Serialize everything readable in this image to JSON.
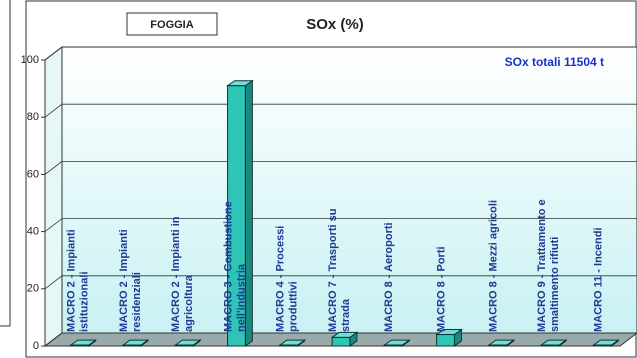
{
  "chart_data": {
    "type": "bar3d",
    "label": "FOGGIA",
    "title": "SOx (%)",
    "annotation": "SOx totali 11504  t",
    "categories": [
      "MACRO 2 - Impianti istituzionali",
      "MACRO 2 - Impianti residenziali",
      "MACRO 2 - Impianti in agricoltura",
      "MACRO 3 - Combustione nell'industria",
      "MACRO 4 - Processi produttivi",
      "MACRO 7 - Trasporti su strada",
      "MACRO 8 - Aeroporti",
      "MACRO 8 - Porti",
      "MACRO 8 - Mezzi agricoli",
      "MACRO 9 - Trattamento e smaltimento rifiuti",
      "MACRO 11 - Incendi"
    ],
    "values": [
      0.3,
      0.3,
      0.3,
      91,
      0.3,
      3,
      0.3,
      4,
      0.3,
      0.3,
      0.3
    ],
    "color": "#2ec4b6",
    "ylim": [
      0,
      100
    ],
    "yticks": [
      0,
      20,
      40,
      60,
      80,
      100
    ],
    "grid": true
  }
}
